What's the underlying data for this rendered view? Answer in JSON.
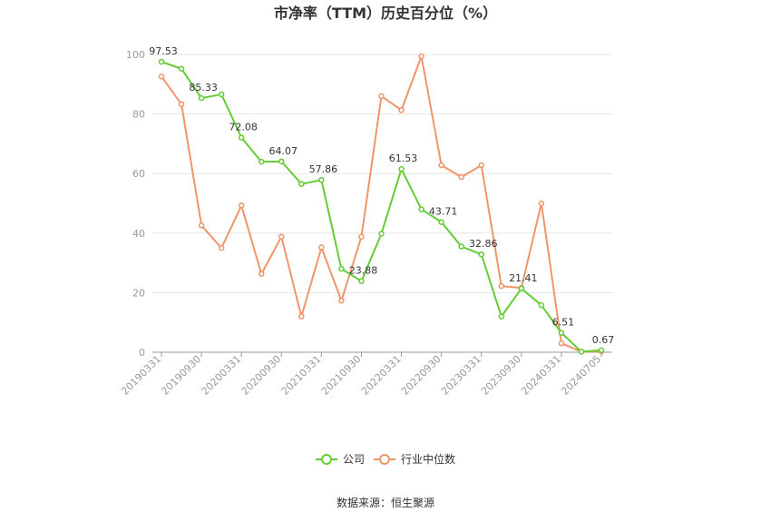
{
  "chart_data": {
    "type": "line",
    "title": "市净率（TTM）历史百分位（%）",
    "source": "数据来源：恒生聚源",
    "ylim": [
      0,
      100
    ],
    "yticks": [
      0,
      20,
      40,
      60,
      80,
      100
    ],
    "grid": true,
    "legend_position": "bottom",
    "x": [
      "20190331",
      "20190630",
      "20190930",
      "20191231",
      "20200331",
      "20200630",
      "20200930",
      "20201231",
      "20210331",
      "20210630",
      "20210930",
      "20211231",
      "20220331",
      "20220630",
      "20220930",
      "20221231",
      "20230331",
      "20230630",
      "20230930",
      "20231231",
      "20240331",
      "20240630",
      "20240705"
    ],
    "xtick_labels": [
      "20190331",
      "20190930",
      "20200331",
      "20200930",
      "20210331",
      "20210930",
      "20220331",
      "20220930",
      "20230331",
      "20230930",
      "20240331",
      "20240705"
    ],
    "series": [
      {
        "name": "公司",
        "color": "#66cc33",
        "values": [
          97.53,
          95.2,
          85.33,
          86.6,
          72.08,
          64.0,
          64.07,
          56.5,
          57.86,
          28.0,
          23.88,
          39.8,
          61.53,
          48.0,
          43.71,
          35.5,
          32.86,
          12.0,
          21.41,
          15.8,
          6.51,
          0.2,
          0.67
        ],
        "labels": {
          "0": "97.53",
          "2": "85.33",
          "4": "72.08",
          "6": "64.07",
          "8": "57.86",
          "10": "23.88",
          "12": "61.53",
          "14": "43.71",
          "16": "32.86",
          "18": "21.41",
          "20": "6.51",
          "22": "0.67"
        }
      },
      {
        "name": "行业中位数",
        "color": "#f0956a",
        "values": [
          92.6,
          83.3,
          42.6,
          35.0,
          49.3,
          26.3,
          38.8,
          12.0,
          35.2,
          17.3,
          38.8,
          86.0,
          81.3,
          99.4,
          62.8,
          58.8,
          62.8,
          22.2,
          21.6,
          50.0,
          3.0,
          0.2,
          0.3
        ]
      }
    ]
  }
}
